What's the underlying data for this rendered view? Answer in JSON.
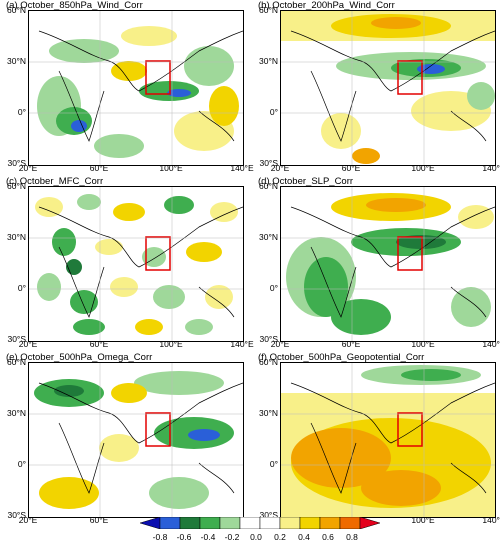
{
  "panels": [
    {
      "title": "(a) October_850hPa_Wind_Corr"
    },
    {
      "title": "(b) October_200hPa_Wind_Corr"
    },
    {
      "title": "(c) October_MFC_Corr"
    },
    {
      "title": "(d) October_SLP_Corr"
    },
    {
      "title": "(e) October_500hPa_Omega_Corr"
    },
    {
      "title": "(f) October_500hPa_Geopotential_Corr"
    }
  ],
  "axis": {
    "lat_labels": [
      "60°N",
      "30°N",
      "0°",
      "30°S"
    ],
    "lon_labels": [
      "20°E",
      "60°E",
      "100°E",
      "140°E"
    ]
  },
  "colorbar": {
    "labels": [
      "-0.8",
      "-0.6",
      "-0.4",
      "-0.2",
      "0.0",
      "0.2",
      "0.4",
      "0.6",
      "0.8"
    ],
    "colors": [
      "#0b0fb0",
      "#2a5fd8",
      "#1f7a3a",
      "#3fae4f",
      "#9fd89a",
      "#ffffff",
      "#ffffff",
      "#f8f089",
      "#f2d400",
      "#f2a400",
      "#ef6a00",
      "#e4001c"
    ]
  },
  "box_color": "#e30000"
}
